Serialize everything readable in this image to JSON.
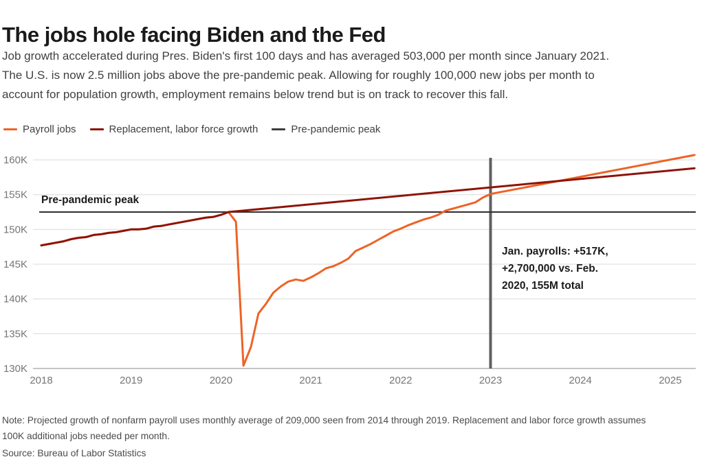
{
  "header": {
    "title": "The jobs hole facing Biden and the Fed",
    "subtitle_lines": [
      "Job growth accelerated during Pres. Biden's first 100 days and has averaged 503,000 per month since January 2021.",
      "The U.S. is now 2.5 million jobs above the pre-pandemic peak. Allowing for roughly 100,000 new jobs per month to",
      "account for population growth, employment remains below trend but is on track to recover this fall."
    ]
  },
  "legend": {
    "items": [
      {
        "label": "Payroll jobs",
        "color": "#ed6325"
      },
      {
        "label": "Replacement, labor force growth",
        "color": "#8e1308"
      },
      {
        "label": "Pre-pandemic peak",
        "color": "#3d3d3d"
      }
    ]
  },
  "chart_data": {
    "type": "line",
    "title": "The jobs hole facing Biden and the Fed",
    "units": "millions of nonfarm payroll jobs, axis shown in thousands (K)",
    "y_axis": {
      "min": 130,
      "max": 160,
      "ticks": [
        160,
        155,
        150,
        145,
        140,
        135,
        130
      ],
      "tick_format": "{v}K",
      "gridlines": true
    },
    "x_axis": {
      "min": 2018,
      "max": 2025.3,
      "ticks": [
        2018,
        2019,
        2020,
        2021,
        2022,
        2023,
        2024,
        2025
      ]
    },
    "series": [
      {
        "name": "Payroll jobs",
        "color": "#ed6325",
        "x_start": 2018.0,
        "x_step_months": 1,
        "values": [
          147.7,
          147.9,
          148.1,
          148.3,
          148.6,
          148.8,
          148.9,
          149.2,
          149.3,
          149.5,
          149.6,
          149.8,
          150.0,
          150.0,
          150.1,
          150.4,
          150.5,
          150.7,
          150.9,
          151.1,
          151.3,
          151.5,
          151.7,
          151.8,
          152.1,
          152.5,
          151.1,
          130.4,
          133.1,
          137.9,
          139.3,
          140.9,
          141.8,
          142.5,
          142.8,
          142.6,
          143.1,
          143.7,
          144.4,
          144.7,
          145.2,
          145.8,
          146.9,
          147.4,
          147.9,
          148.5,
          149.1,
          149.7,
          150.1,
          150.6,
          151.0,
          151.4,
          151.7,
          152.1,
          152.7,
          153.0,
          153.3,
          153.6,
          153.9,
          154.6,
          155.1
        ],
        "projection": [
          [
            2023.0,
            155.1
          ],
          [
            2025.27,
            160.7
          ]
        ]
      },
      {
        "name": "Replacement, labor force growth",
        "color": "#8e1308",
        "x_start": 2018.0,
        "x_step_months": 1,
        "values": [
          147.7,
          147.9,
          148.1,
          148.3,
          148.6,
          148.8,
          148.9,
          149.2,
          149.3,
          149.5,
          149.6,
          149.8,
          150.0,
          150.0,
          150.1,
          150.4,
          150.5,
          150.7,
          150.9,
          151.1,
          151.3,
          151.5,
          151.7,
          151.8,
          152.1,
          152.5
        ],
        "projection": [
          [
            2020.083,
            152.5
          ],
          [
            2025.27,
            158.8
          ]
        ]
      },
      {
        "name": "Pre-pandemic peak",
        "type": "horizontal",
        "color": "#2e2e2e",
        "value": 152.5
      }
    ],
    "vertical_marker": {
      "x": 2023.0,
      "color": "#5f5f5f",
      "label": "Jan 2023"
    },
    "annotations": [
      {
        "id": "pre-pandemic-peak-label",
        "lines": [
          "Pre-pandemic peak"
        ]
      },
      {
        "id": "jan-payrolls-callout",
        "lines": [
          "Jan. payrolls: +517K,",
          "+2,700,000 vs. Feb.",
          "2020, 155M total"
        ]
      }
    ],
    "legend_position": "top-left",
    "grid_color": "#d9d9d9",
    "axis_line_color": "#b0b0b0"
  },
  "footer": {
    "note_lines": [
      "Note: Projected growth of nonfarm payroll uses monthly average of 209,000 seen from 2014 through 2019. Replacement and labor force growth assumes",
      "100K additional jobs needed per month."
    ],
    "source": "Source: Bureau of Labor Statistics"
  }
}
